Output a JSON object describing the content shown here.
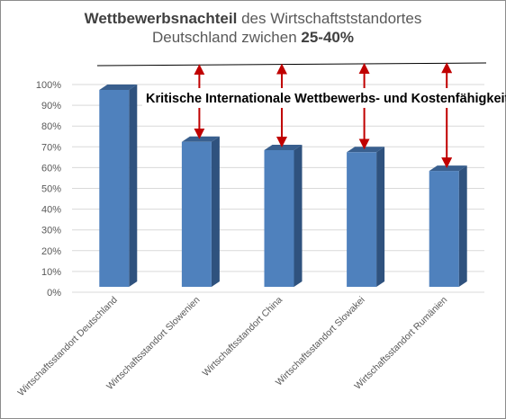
{
  "title": {
    "line1_bold": "Wettbewerbsnachteil",
    "line1_rest": " des Wirtschaftststandortes",
    "line2_rest": "Deutschland  zwichen ",
    "line2_bold": "25-40%"
  },
  "annotation": "Kritische Internationale Wettbewerbs- und Kostenfähigkeit",
  "colors": {
    "bar_front": "#4f81bd",
    "bar_side": "#2f527e",
    "bar_top": "#395f8e",
    "arrow": "#c00000",
    "grid": "#d9d9d9",
    "axis_text": "#595959"
  },
  "chart_data": {
    "type": "bar",
    "categories": [
      "Wirtschaftsstandort Deutschland",
      "Wirtschaftsstandort Slowenien",
      "Wirtschaftsstandort China",
      "Wirtschaftsstandort Slowakei",
      "Wirtschaftsstandort Rumänien"
    ],
    "values": [
      100,
      75,
      71,
      70,
      61
    ],
    "ylim": [
      0,
      100
    ],
    "yticks": [
      "0%",
      "10%",
      "20%",
      "30%",
      "40%",
      "50%",
      "60%",
      "70%",
      "80%",
      "90%",
      "100%"
    ],
    "grid": true,
    "style": "3d-column",
    "legend": "none"
  }
}
